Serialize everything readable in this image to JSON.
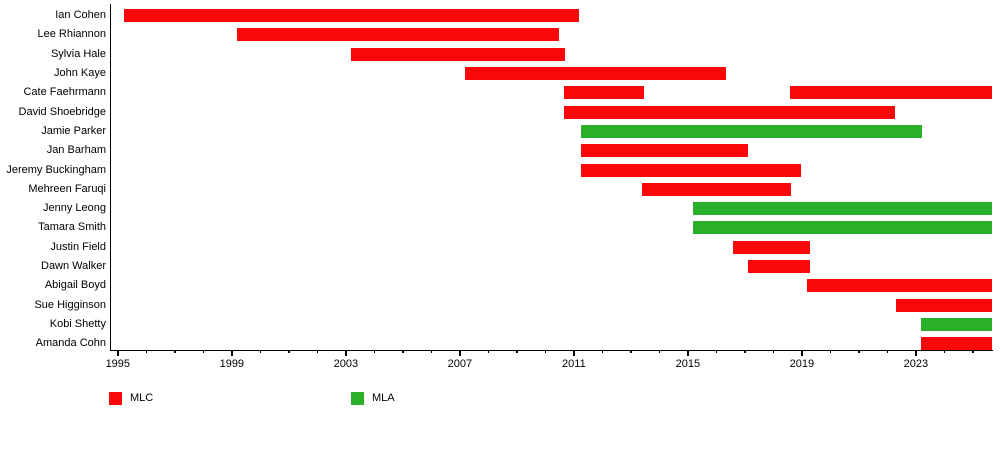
{
  "chart_data": {
    "type": "gantt-timeline",
    "title": "",
    "description_visible_text_only": "Timeline of members with red MLC bars and green MLA bars",
    "x_axis": {
      "min": 1994.75,
      "max": 2025.67,
      "major_ticks": [
        1995,
        1999,
        2003,
        2007,
        2011,
        2015,
        2019,
        2023
      ],
      "minor_tick_start": 1995,
      "minor_tick_end": 2025,
      "minor_tick_interval": 1
    },
    "colors": {
      "MLC": "#f80909",
      "MLA": "#2bb02b"
    },
    "legend": [
      {
        "label": "MLC",
        "color": "#f80909"
      },
      {
        "label": "MLA",
        "color": "#2bb02b"
      }
    ],
    "rows": [
      {
        "name": "Ian Cohen",
        "segments": [
          {
            "start": 1995.2,
            "end": 2011.18,
            "type": "MLC"
          }
        ]
      },
      {
        "name": "Lee Rhiannon",
        "segments": [
          {
            "start": 1999.19,
            "end": 2010.48,
            "type": "MLC"
          }
        ]
      },
      {
        "name": "Sylvia Hale",
        "segments": [
          {
            "start": 2003.18,
            "end": 2010.69,
            "type": "MLC"
          }
        ]
      },
      {
        "name": "John Kaye",
        "segments": [
          {
            "start": 2007.18,
            "end": 2016.34,
            "type": "MLC"
          }
        ]
      },
      {
        "name": "Cate Faehrmann",
        "segments": [
          {
            "start": 2010.65,
            "end": 2013.46,
            "type": "MLC"
          },
          {
            "start": 2018.58,
            "end": 2025.67,
            "type": "MLC"
          }
        ]
      },
      {
        "name": "David Shoebridge",
        "segments": [
          {
            "start": 2010.65,
            "end": 2022.27,
            "type": "MLC"
          }
        ]
      },
      {
        "name": "Jamie Parker",
        "segments": [
          {
            "start": 2011.24,
            "end": 2023.23,
            "type": "MLA"
          }
        ]
      },
      {
        "name": "Jan Barham",
        "segments": [
          {
            "start": 2011.24,
            "end": 2017.12,
            "type": "MLC"
          }
        ]
      },
      {
        "name": "Jeremy Buckingham",
        "segments": [
          {
            "start": 2011.24,
            "end": 2018.96,
            "type": "MLC"
          }
        ]
      },
      {
        "name": "Mehreen Faruqi",
        "segments": [
          {
            "start": 2013.4,
            "end": 2018.62,
            "type": "MLC"
          }
        ]
      },
      {
        "name": "Jenny Leong",
        "segments": [
          {
            "start": 2015.19,
            "end": 2025.67,
            "type": "MLA"
          }
        ]
      },
      {
        "name": "Tamara Smith",
        "segments": [
          {
            "start": 2015.19,
            "end": 2025.67,
            "type": "MLA"
          }
        ]
      },
      {
        "name": "Justin Field",
        "segments": [
          {
            "start": 2016.6,
            "end": 2019.29,
            "type": "MLC"
          }
        ]
      },
      {
        "name": "Dawn Walker",
        "segments": [
          {
            "start": 2017.12,
            "end": 2019.29,
            "type": "MLC"
          }
        ]
      },
      {
        "name": "Abigail Boyd",
        "segments": [
          {
            "start": 2019.19,
            "end": 2025.67,
            "type": "MLC"
          }
        ]
      },
      {
        "name": "Sue Higginson",
        "segments": [
          {
            "start": 2022.3,
            "end": 2025.67,
            "type": "MLC"
          }
        ]
      },
      {
        "name": "Kobi Shetty",
        "segments": [
          {
            "start": 2023.17,
            "end": 2025.67,
            "type": "MLA"
          }
        ]
      },
      {
        "name": "Amanda Cohn",
        "segments": [
          {
            "start": 2023.17,
            "end": 2025.67,
            "type": "MLC"
          }
        ]
      }
    ]
  }
}
